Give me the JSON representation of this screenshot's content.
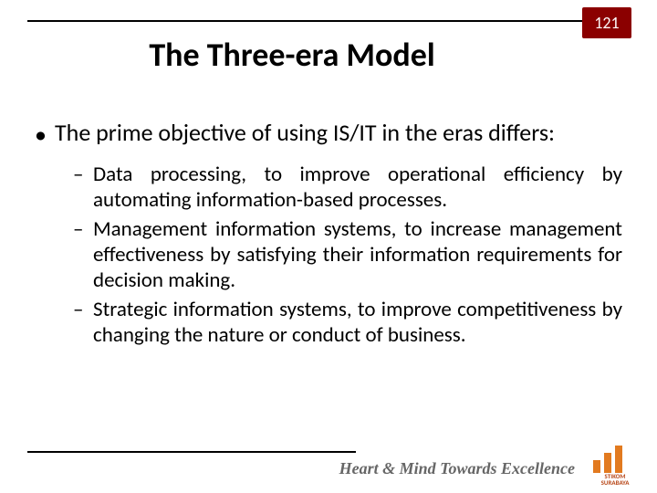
{
  "page_number": "121",
  "title": "The Three-era Model",
  "bullet_main": "The prime objective of using IS/IT in the eras differs:",
  "sub_bullets": [
    "Data processing, to improve operational efficiency by automating information-based processes.",
    "Management information systems, to increase management effectiveness by satisfying their information requirements for decision making.",
    "Strategic information systems, to improve competitiveness by changing the nature or conduct of business."
  ],
  "tagline": "Heart & Mind Towards Excellence",
  "logo_text": "STIKOM",
  "logo_sub": "SURABAYA",
  "colors": {
    "badge_bg": "#8b0000",
    "logo_orange": "#e27a1f",
    "tagline_gray": "#666666"
  }
}
